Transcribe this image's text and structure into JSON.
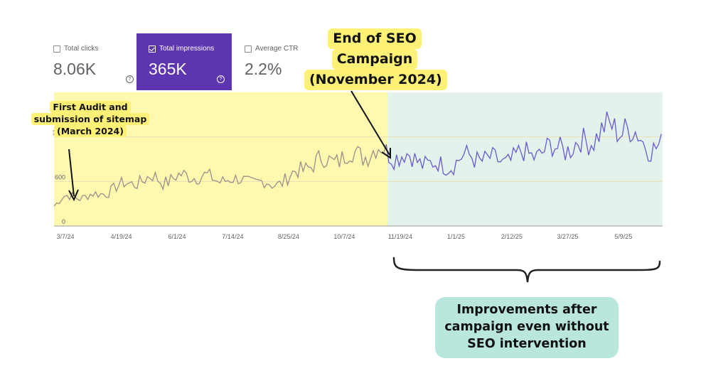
{
  "metrics": {
    "clicks": {
      "label": "Total clicks",
      "value": "8.06K",
      "checked": false
    },
    "impressions": {
      "label": "Total impressions",
      "value": "365K",
      "checked": true,
      "color": "#5e35b1"
    },
    "ctr": {
      "label": "Average CTR",
      "value": "2.2%",
      "checked": false
    }
  },
  "callouts": {
    "audit": [
      "First Audit and",
      "submission of sitemap",
      "(March 2024)"
    ],
    "campaign_end": [
      "End of SEO",
      "Campaign",
      "(November 2024)"
    ],
    "improvement": [
      "Improvements after",
      "campaign even without",
      "SEO intervention"
    ]
  },
  "colors": {
    "campaign_period": "#fff9b0",
    "post_campaign_period": "#e3f2ea",
    "line_during_campaign": "#9e8e8a",
    "line_after_campaign": "#6a5acd"
  },
  "chart_data": {
    "type": "line",
    "x_tick_labels": [
      "3/7/24",
      "4/19/24",
      "6/1/24",
      "7/14/24",
      "8/25/24",
      "10/7/24",
      "11/19/24",
      "1/1/25",
      "2/12/25",
      "3/27/25",
      "5/9/25"
    ],
    "y_tick_labels": [
      "0",
      "600",
      "1.2K"
    ],
    "ylim": [
      0,
      1800
    ],
    "xlim": [
      "2024-03-07",
      "2025-06-19"
    ],
    "campaign_end_date": "2024-11-19",
    "series": [
      {
        "values_weekly": [
          {
            "x": "2024-03-07",
            "y": 280
          },
          {
            "x": "2024-03-14",
            "y": 380
          },
          {
            "x": "2024-03-21",
            "y": 400
          },
          {
            "x": "2024-03-28",
            "y": 390
          },
          {
            "x": "2024-04-04",
            "y": 410
          },
          {
            "x": "2024-04-11",
            "y": 420
          },
          {
            "x": "2024-04-18",
            "y": 480
          },
          {
            "x": "2024-04-25",
            "y": 530
          },
          {
            "x": "2024-05-02",
            "y": 560
          },
          {
            "x": "2024-05-09",
            "y": 600
          },
          {
            "x": "2024-05-16",
            "y": 620
          },
          {
            "x": "2024-05-23",
            "y": 650
          },
          {
            "x": "2024-05-30",
            "y": 610
          },
          {
            "x": "2024-06-06",
            "y": 630
          },
          {
            "x": "2024-06-13",
            "y": 660
          },
          {
            "x": "2024-06-20",
            "y": 700
          },
          {
            "x": "2024-06-27",
            "y": 680
          },
          {
            "x": "2024-07-04",
            "y": 640
          },
          {
            "x": "2024-07-11",
            "y": 620
          },
          {
            "x": "2024-07-18",
            "y": 640
          },
          {
            "x": "2024-07-25",
            "y": 600
          },
          {
            "x": "2024-08-01",
            "y": 620
          },
          {
            "x": "2024-08-08",
            "y": 600
          },
          {
            "x": "2024-08-15",
            "y": 570
          },
          {
            "x": "2024-08-22",
            "y": 560
          },
          {
            "x": "2024-08-29",
            "y": 600
          },
          {
            "x": "2024-09-05",
            "y": 660
          },
          {
            "x": "2024-09-12",
            "y": 740
          },
          {
            "x": "2024-09-19",
            "y": 820
          },
          {
            "x": "2024-09-26",
            "y": 860
          },
          {
            "x": "2024-10-03",
            "y": 880
          },
          {
            "x": "2024-10-10",
            "y": 900
          },
          {
            "x": "2024-10-17",
            "y": 930
          },
          {
            "x": "2024-10-24",
            "y": 960
          },
          {
            "x": "2024-10-31",
            "y": 980
          },
          {
            "x": "2024-11-07",
            "y": 1000
          },
          {
            "x": "2024-11-14",
            "y": 1020
          },
          {
            "x": "2024-11-21",
            "y": 1000
          },
          {
            "x": "2024-11-28",
            "y": 950
          },
          {
            "x": "2024-12-05",
            "y": 920
          },
          {
            "x": "2024-12-12",
            "y": 900
          },
          {
            "x": "2024-12-19",
            "y": 850
          },
          {
            "x": "2024-12-26",
            "y": 800
          },
          {
            "x": "2025-01-02",
            "y": 820
          },
          {
            "x": "2025-01-09",
            "y": 860
          },
          {
            "x": "2025-01-16",
            "y": 900
          },
          {
            "x": "2025-01-23",
            "y": 940
          },
          {
            "x": "2025-01-30",
            "y": 920
          },
          {
            "x": "2025-02-06",
            "y": 880
          },
          {
            "x": "2025-02-13",
            "y": 860
          },
          {
            "x": "2025-02-20",
            "y": 900
          },
          {
            "x": "2025-02-27",
            "y": 940
          },
          {
            "x": "2025-03-06",
            "y": 960
          },
          {
            "x": "2025-03-13",
            "y": 980
          },
          {
            "x": "2025-03-20",
            "y": 1000
          },
          {
            "x": "2025-03-27",
            "y": 1040
          },
          {
            "x": "2025-04-03",
            "y": 1080
          },
          {
            "x": "2025-04-10",
            "y": 1040
          },
          {
            "x": "2025-04-17",
            "y": 1100
          },
          {
            "x": "2025-04-24",
            "y": 1180
          },
          {
            "x": "2025-05-01",
            "y": 1260
          },
          {
            "x": "2025-05-08",
            "y": 1300
          },
          {
            "x": "2025-05-15",
            "y": 1320
          },
          {
            "x": "2025-05-22",
            "y": 1340
          },
          {
            "x": "2025-05-29",
            "y": 1200
          },
          {
            "x": "2025-06-05",
            "y": 1120
          },
          {
            "x": "2025-06-12",
            "y": 1080
          },
          {
            "x": "2025-06-19",
            "y": 1050
          }
        ]
      }
    ]
  }
}
